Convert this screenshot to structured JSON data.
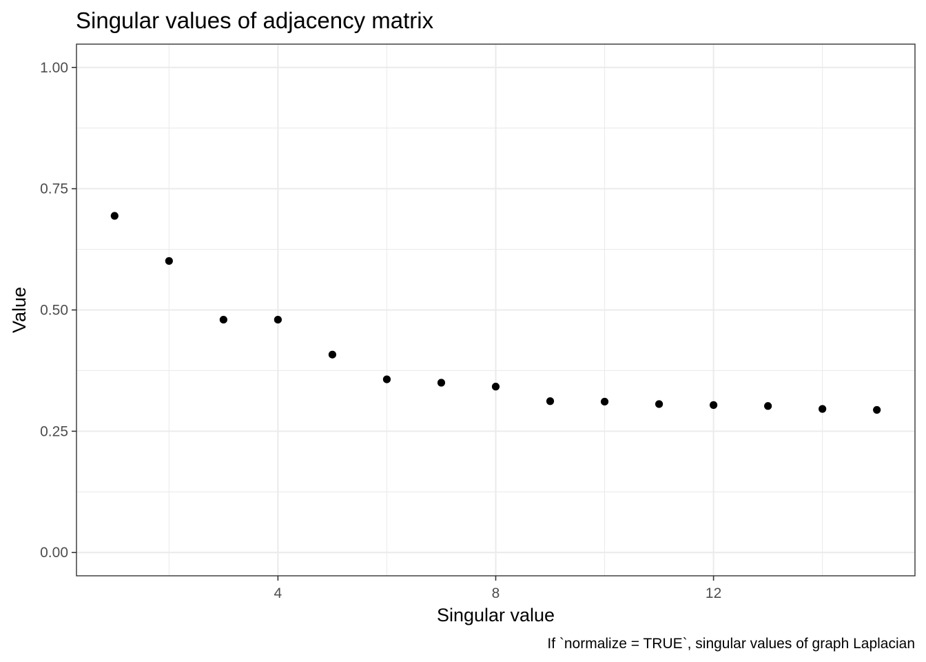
{
  "chart_data": {
    "type": "scatter",
    "title": "Singular values of adjacency matrix",
    "xlabel": "Singular value",
    "ylabel": "Value",
    "caption": "If `normalize = TRUE`, singular values of graph Laplacian",
    "x": [
      1,
      2,
      3,
      4,
      5,
      6,
      7,
      8,
      9,
      10,
      11,
      12,
      13,
      14,
      15
    ],
    "y": [
      0.694,
      0.601,
      0.48,
      0.48,
      0.408,
      0.357,
      0.35,
      0.342,
      0.312,
      0.311,
      0.306,
      0.304,
      0.302,
      0.296,
      0.294
    ],
    "xlim": [
      0.3,
      15.7
    ],
    "ylim": [
      -0.048,
      1.048
    ],
    "x_ticks": [
      4,
      8,
      12
    ],
    "x_tick_labels": [
      "4",
      "8",
      "12"
    ],
    "y_ticks": [
      0,
      0.25,
      0.5,
      0.75,
      1
    ],
    "y_tick_labels": [
      "0.00",
      "0.25",
      "0.50",
      "0.75",
      "1.00"
    ],
    "x_minor": [
      2,
      6,
      10,
      14
    ],
    "y_minor": [
      0.125,
      0.375,
      0.625,
      0.875
    ],
    "grid": true,
    "legend": "none",
    "point_color": "#000000",
    "theme": "bw"
  }
}
